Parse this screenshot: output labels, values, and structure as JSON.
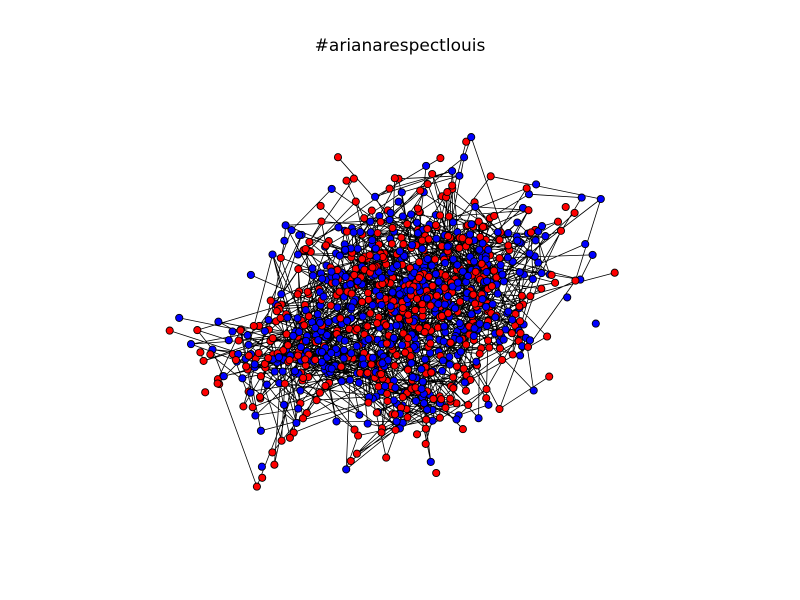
{
  "title": "#arianarespectlouis",
  "graph": {
    "node_colors": {
      "group_a": "#ff0000",
      "group_b": "#0000ff"
    },
    "edge_color": "#000000",
    "node_outline": "#000000"
  }
}
